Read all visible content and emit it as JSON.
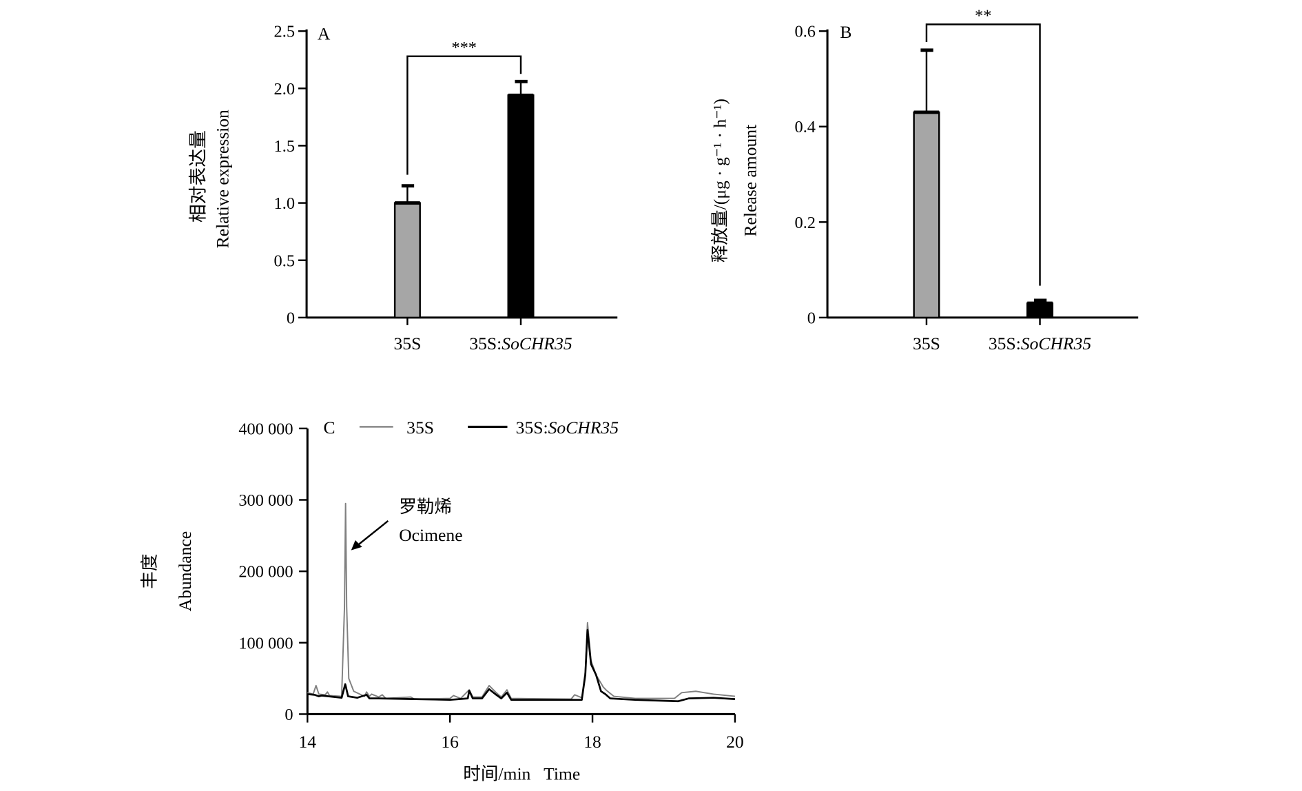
{
  "chart_data": [
    {
      "panel": "A",
      "type": "bar",
      "ylabel_cn": "相对表达量",
      "ylabel": "Relative expression",
      "categories": [
        "35S",
        "35S:SoCHR35"
      ],
      "category_prefix": [
        "35S",
        "35S:"
      ],
      "category_italic": [
        "",
        "SoCHR35"
      ],
      "values": [
        1.0,
        1.94
      ],
      "errors": [
        0.15,
        0.12
      ],
      "colors": [
        "#a6a6a6",
        "#000000"
      ],
      "ylim": [
        0,
        2.5
      ],
      "yticks": [
        0,
        0.5,
        1.0,
        1.5,
        2.0,
        2.5
      ],
      "ytick_labels": [
        "0",
        "0.5",
        "1.0",
        "1.5",
        "2.0",
        "2.5"
      ],
      "significance": "***"
    },
    {
      "panel": "B",
      "type": "bar",
      "ylabel_cn": "释放量/(μg · g⁻¹ · h⁻¹)",
      "ylabel": "Release amount",
      "categories": [
        "35S",
        "35S:SoCHR35"
      ],
      "category_prefix": [
        "35S",
        "35S:"
      ],
      "category_italic": [
        "",
        "SoCHR35"
      ],
      "values": [
        0.43,
        0.03
      ],
      "errors": [
        0.13,
        0.006
      ],
      "colors": [
        "#a6a6a6",
        "#000000"
      ],
      "ylim": [
        0,
        0.6
      ],
      "yticks": [
        0,
        0.2,
        0.4,
        0.6
      ],
      "ytick_labels": [
        "0",
        "0.2",
        "0.4",
        "0.6"
      ],
      "significance": "**"
    },
    {
      "panel": "C",
      "type": "line",
      "ylabel_cn": "丰度",
      "ylabel": "Abundance",
      "xlabel": "时间/min   Time",
      "xlim": [
        14,
        20
      ],
      "xticks": [
        14,
        16,
        18,
        20
      ],
      "ylim": [
        0,
        400000
      ],
      "yticks": [
        0,
        100000,
        200000,
        300000,
        400000
      ],
      "ytick_labels": [
        "0",
        "100 000",
        "200 000",
        "300 000",
        "400 000"
      ],
      "annotation_cn": "罗勒烯",
      "annotation": "Ocimene",
      "legend": [
        "35S",
        "35S:SoCHR35"
      ],
      "series": [
        {
          "name": "35S",
          "color": "#808080",
          "points": [
            [
              14,
              30000
            ],
            [
              14.08,
              28000
            ],
            [
              14.12,
              40000
            ],
            [
              14.16,
              28000
            ],
            [
              14.25,
              27000
            ],
            [
              14.28,
              31000
            ],
            [
              14.31,
              26000
            ],
            [
              14.48,
              25000
            ],
            [
              14.52,
              150000
            ],
            [
              14.535,
              295000
            ],
            [
              14.55,
              150000
            ],
            [
              14.58,
              50000
            ],
            [
              14.65,
              32000
            ],
            [
              14.8,
              25000
            ],
            [
              14.83,
              31000
            ],
            [
              14.87,
              25000
            ],
            [
              14.9,
              28000
            ],
            [
              15,
              24000
            ],
            [
              15.05,
              27000
            ],
            [
              15.1,
              22000
            ],
            [
              15.45,
              24000
            ],
            [
              15.5,
              21000
            ],
            [
              16,
              22000
            ],
            [
              16.05,
              26000
            ],
            [
              16.15,
              22000
            ],
            [
              16.27,
              34000
            ],
            [
              16.32,
              24000
            ],
            [
              16.45,
              24000
            ],
            [
              16.55,
              40000
            ],
            [
              16.65,
              30000
            ],
            [
              16.72,
              24000
            ],
            [
              16.8,
              34000
            ],
            [
              16.86,
              22000
            ],
            [
              17.7,
              21000
            ],
            [
              17.75,
              27000
            ],
            [
              17.85,
              23000
            ],
            [
              17.9,
              60000
            ],
            [
              17.93,
              128000
            ],
            [
              17.98,
              75000
            ],
            [
              18.05,
              55000
            ],
            [
              18.15,
              38000
            ],
            [
              18.2,
              33000
            ],
            [
              18.3,
              25000
            ],
            [
              18.6,
              22000
            ],
            [
              19.15,
              22000
            ],
            [
              19.25,
              30000
            ],
            [
              19.45,
              32000
            ],
            [
              19.7,
              28000
            ],
            [
              20,
              25000
            ]
          ]
        },
        {
          "name": "35S:SoCHR35",
          "color": "#000000",
          "points": [
            [
              14,
              28000
            ],
            [
              14.1,
              27000
            ],
            [
              14.16,
              25000
            ],
            [
              14.2,
              26000
            ],
            [
              14.48,
              23000
            ],
            [
              14.53,
              42000
            ],
            [
              14.57,
              25000
            ],
            [
              14.7,
              23000
            ],
            [
              14.83,
              27000
            ],
            [
              14.87,
              22000
            ],
            [
              15,
              22000
            ],
            [
              15.5,
              21000
            ],
            [
              16,
              20000
            ],
            [
              16.25,
              22000
            ],
            [
              16.27,
              33000
            ],
            [
              16.32,
              22000
            ],
            [
              16.45,
              22000
            ],
            [
              16.55,
              35000
            ],
            [
              16.65,
              27000
            ],
            [
              16.72,
              22000
            ],
            [
              16.8,
              30000
            ],
            [
              16.86,
              20000
            ],
            [
              17.85,
              20000
            ],
            [
              17.9,
              55000
            ],
            [
              17.93,
              118000
            ],
            [
              17.98,
              70000
            ],
            [
              18.05,
              55000
            ],
            [
              18.12,
              32000
            ],
            [
              18.18,
              28000
            ],
            [
              18.25,
              22000
            ],
            [
              18.6,
              20000
            ],
            [
              19.2,
              18000
            ],
            [
              19.35,
              22000
            ],
            [
              19.7,
              23000
            ],
            [
              20,
              21000
            ]
          ]
        }
      ]
    }
  ]
}
